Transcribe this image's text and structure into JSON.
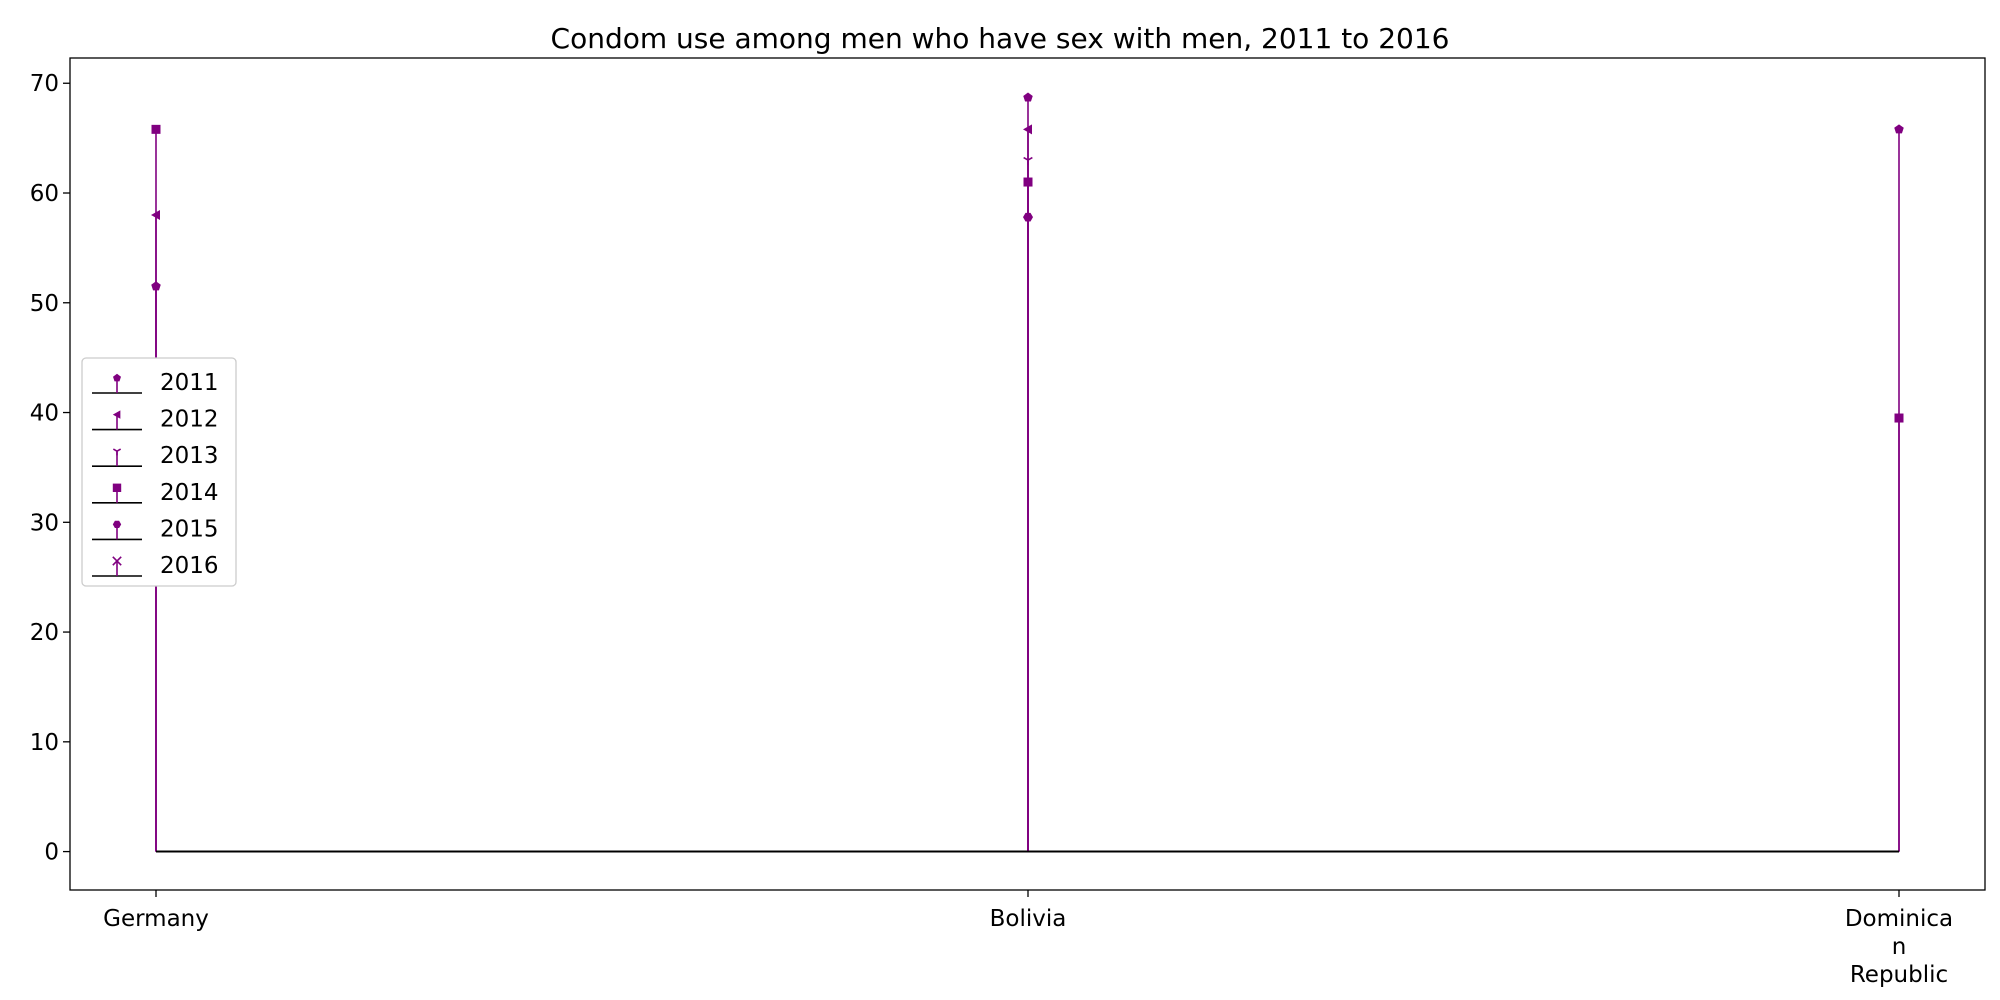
{
  "chart_data": {
    "type": "stem",
    "title": "Condom use among men who have sex with men, 2011 to 2016",
    "xlabel": "",
    "ylabel": "",
    "categories": [
      {
        "name": "Germany",
        "label_lines": [
          "Germany"
        ]
      },
      {
        "name": "Bolivia",
        "label_lines": [
          "Bolivia"
        ]
      },
      {
        "name": "Dominican Republic",
        "label_lines": [
          "Dominica",
          "n",
          "Republic"
        ]
      }
    ],
    "ylim": [
      -3.5,
      72.3
    ],
    "yticks": [
      0,
      10,
      20,
      30,
      40,
      50,
      60,
      70
    ],
    "grid": false,
    "legend_position": "center-left",
    "series": [
      {
        "name": "2011",
        "marker": "pentagon",
        "values": [
          51.5,
          68.7,
          65.8
        ]
      },
      {
        "name": "2012",
        "marker": "triangle-left",
        "values": [
          58.0,
          65.8,
          null
        ]
      },
      {
        "name": "2013",
        "marker": "tri-down",
        "values": [
          null,
          63.0,
          null
        ]
      },
      {
        "name": "2014",
        "marker": "square",
        "values": [
          65.8,
          61.0,
          39.5
        ]
      },
      {
        "name": "2015",
        "marker": "hexagon",
        "values": [
          null,
          57.8,
          null
        ]
      },
      {
        "name": "2016",
        "marker": "x",
        "values": [
          null,
          null,
          null
        ]
      }
    ],
    "colors": {
      "stem": "#800080",
      "baseline": "#000000"
    }
  }
}
